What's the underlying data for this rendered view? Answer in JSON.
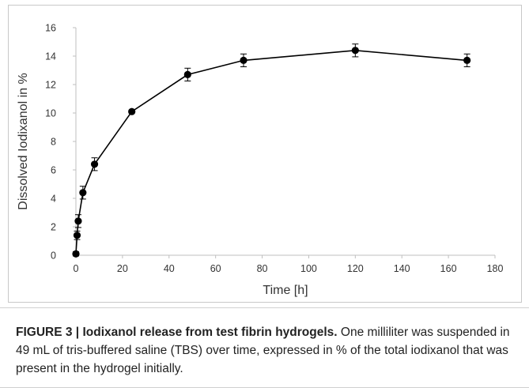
{
  "chart_data": {
    "type": "line",
    "xlabel": "Time [h]",
    "ylabel": "Dissolved Iodixanol in %",
    "xlim": [
      0,
      180
    ],
    "ylim": [
      0,
      16
    ],
    "xticks": [
      0,
      20,
      40,
      60,
      80,
      100,
      120,
      140,
      160,
      180
    ],
    "yticks": [
      0,
      2,
      4,
      6,
      8,
      10,
      12,
      14,
      16
    ],
    "grid": false,
    "legend": "none",
    "series": [
      {
        "x": [
          0,
          0.5,
          1,
          3,
          8,
          24,
          48,
          72,
          120,
          168
        ],
        "y": [
          0.1,
          1.4,
          2.4,
          4.4,
          6.4,
          10.1,
          12.7,
          13.7,
          14.4,
          13.7
        ],
        "error": [
          0.15,
          0.3,
          0.45,
          0.45,
          0.45,
          0.1,
          0.45,
          0.45,
          0.45,
          0.45
        ]
      }
    ],
    "colors": {
      "line": "#000000",
      "axis": "#bfbfbf",
      "tick_text": "#333333"
    }
  },
  "caption": {
    "label": "FIGURE 3 |",
    "title": " Iodixanol release from test fibrin hydrogels.",
    "text": " One milliliter was suspended in 49 mL of tris-buffered saline (TBS) over time, expressed in % of the total iodixanol that was present in the hydrogel initially."
  }
}
